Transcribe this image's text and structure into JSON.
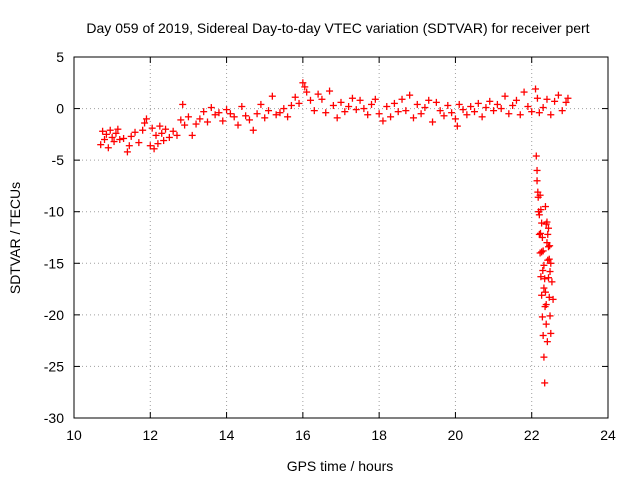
{
  "chart_data": {
    "type": "scatter",
    "title": "Day 059 of 2019, Sidereal Day-to-day VTEC variation (SDTVAR) for receiver pert",
    "xlabel": "GPS time / hours",
    "ylabel": "SDTVAR / TECUs",
    "xlim": [
      10,
      24
    ],
    "ylim": [
      -30,
      5
    ],
    "xticks": [
      10,
      12,
      14,
      16,
      18,
      20,
      22,
      24
    ],
    "yticks": [
      5,
      0,
      -5,
      -10,
      -15,
      -20,
      -25,
      -30
    ],
    "grid": true,
    "marker": "plus",
    "colors": {
      "series": "#ff0000",
      "grid": "#a0a0a0",
      "axis": "#000000"
    },
    "series": [
      {
        "name": "SDTVAR",
        "x": [
          10.7,
          10.75,
          10.8,
          10.85,
          10.9,
          10.95,
          11.0,
          11.05,
          11.1,
          11.15,
          11.2,
          11.3,
          11.4,
          11.45,
          11.5,
          11.6,
          11.7,
          11.8,
          11.85,
          11.9,
          12.0,
          12.05,
          12.1,
          12.15,
          12.2,
          12.25,
          12.3,
          12.35,
          12.4,
          12.5,
          12.6,
          12.7,
          12.8,
          12.85,
          12.9,
          13.0,
          13.1,
          13.2,
          13.3,
          13.4,
          13.5,
          13.6,
          13.7,
          13.8,
          13.9,
          14.0,
          14.1,
          14.2,
          14.3,
          14.4,
          14.5,
          14.6,
          14.7,
          14.8,
          14.9,
          15.0,
          15.1,
          15.2,
          15.3,
          15.4,
          15.5,
          15.6,
          15.7,
          15.8,
          15.9,
          16.0,
          16.05,
          16.1,
          16.2,
          16.3,
          16.4,
          16.5,
          16.6,
          16.7,
          16.8,
          16.9,
          17.0,
          17.1,
          17.2,
          17.3,
          17.4,
          17.5,
          17.6,
          17.7,
          17.8,
          17.9,
          18.0,
          18.1,
          18.2,
          18.3,
          18.4,
          18.5,
          18.6,
          18.7,
          18.8,
          18.9,
          19.0,
          19.1,
          19.2,
          19.3,
          19.4,
          19.5,
          19.6,
          19.7,
          19.8,
          19.9,
          20.0,
          20.05,
          20.1,
          20.2,
          20.3,
          20.4,
          20.5,
          20.6,
          20.7,
          20.8,
          20.9,
          21.0,
          21.1,
          21.2,
          21.3,
          21.4,
          21.5,
          21.6,
          21.7,
          21.8,
          21.9,
          22.0,
          22.1,
          22.15,
          22.2,
          22.3,
          22.4,
          22.5,
          22.6,
          22.7,
          22.8,
          22.9,
          22.95,
          22.12,
          22.14,
          22.16,
          22.18,
          22.2,
          22.22,
          22.24,
          22.26,
          22.28,
          22.3,
          22.32,
          22.34,
          22.36,
          22.38,
          22.4,
          22.42,
          22.44,
          22.46,
          22.48,
          22.5,
          22.14,
          22.17,
          22.2,
          22.23,
          22.26,
          22.29,
          22.32,
          22.35,
          22.38,
          22.41,
          22.44,
          22.47,
          22.5,
          22.53,
          22.56,
          22.22,
          22.24,
          22.26,
          22.28,
          22.3,
          22.32,
          22.34,
          22.36,
          22.38,
          22.4,
          22.42,
          22.44,
          22.46,
          22.48
        ],
        "y": [
          -3.5,
          -2.2,
          -3.0,
          -2.5,
          -3.8,
          -2.1,
          -2.8,
          -3.2,
          -2.4,
          -2.0,
          -3.0,
          -2.9,
          -4.2,
          -3.6,
          -2.7,
          -2.3,
          -3.3,
          -2.1,
          -1.4,
          -1.0,
          -3.6,
          -1.9,
          -3.9,
          -2.6,
          -3.4,
          -1.7,
          -2.4,
          -3.1,
          -2.0,
          -2.8,
          -2.2,
          -2.6,
          -1.1,
          0.4,
          -1.6,
          -0.8,
          -2.6,
          -1.5,
          -1.0,
          -0.3,
          -1.3,
          0.1,
          -0.6,
          -0.4,
          -1.2,
          -0.1,
          -0.5,
          -0.8,
          -1.6,
          0.2,
          -0.7,
          -1.1,
          -2.1,
          -0.5,
          0.4,
          -0.9,
          -0.2,
          1.2,
          -0.6,
          -0.4,
          0.0,
          -0.8,
          0.3,
          1.1,
          0.5,
          2.5,
          2.1,
          1.6,
          0.8,
          -0.2,
          1.4,
          0.9,
          -0.4,
          1.7,
          0.3,
          -0.9,
          0.6,
          -0.3,
          0.2,
          1.0,
          -0.1,
          0.8,
          0.0,
          -0.6,
          0.4,
          0.9,
          -0.5,
          -1.2,
          0.2,
          -0.8,
          0.5,
          -0.3,
          0.9,
          -0.2,
          1.3,
          -0.9,
          0.4,
          -0.5,
          0.1,
          0.8,
          -1.3,
          0.6,
          -0.2,
          -0.7,
          0.3,
          -0.4,
          -1.0,
          -1.7,
          0.4,
          -0.1,
          -0.6,
          0.2,
          -0.3,
          0.5,
          -0.8,
          0.1,
          0.7,
          -0.2,
          0.4,
          0.0,
          1.2,
          -0.5,
          0.3,
          0.8,
          -0.6,
          1.6,
          0.2,
          -0.3,
          1.9,
          1.0,
          -0.4,
          0.1,
          0.9,
          -0.6,
          0.7,
          1.3,
          -0.2,
          0.6,
          1.0,
          -4.6,
          -6.0,
          -8.1,
          -10.0,
          -12.2,
          -14.0,
          -16.3,
          -18.1,
          -20.2,
          -22.0,
          -24.1,
          -26.6,
          -9.5,
          -11.2,
          -13.0,
          -14.7,
          -16.4,
          -18.3,
          -20.1,
          -21.8,
          -7.0,
          -8.6,
          -10.3,
          -12.1,
          -13.9,
          -15.7,
          -17.4,
          -19.2,
          -20.9,
          -22.6,
          -11.6,
          -13.3,
          -15.0,
          -16.8,
          -18.5,
          -8.4,
          -9.8,
          -11.1,
          -12.5,
          -13.8,
          -15.2,
          -16.5,
          -17.8,
          -19.0,
          -11.0,
          -12.2,
          -13.4,
          -14.6,
          -15.8
        ]
      }
    ]
  }
}
